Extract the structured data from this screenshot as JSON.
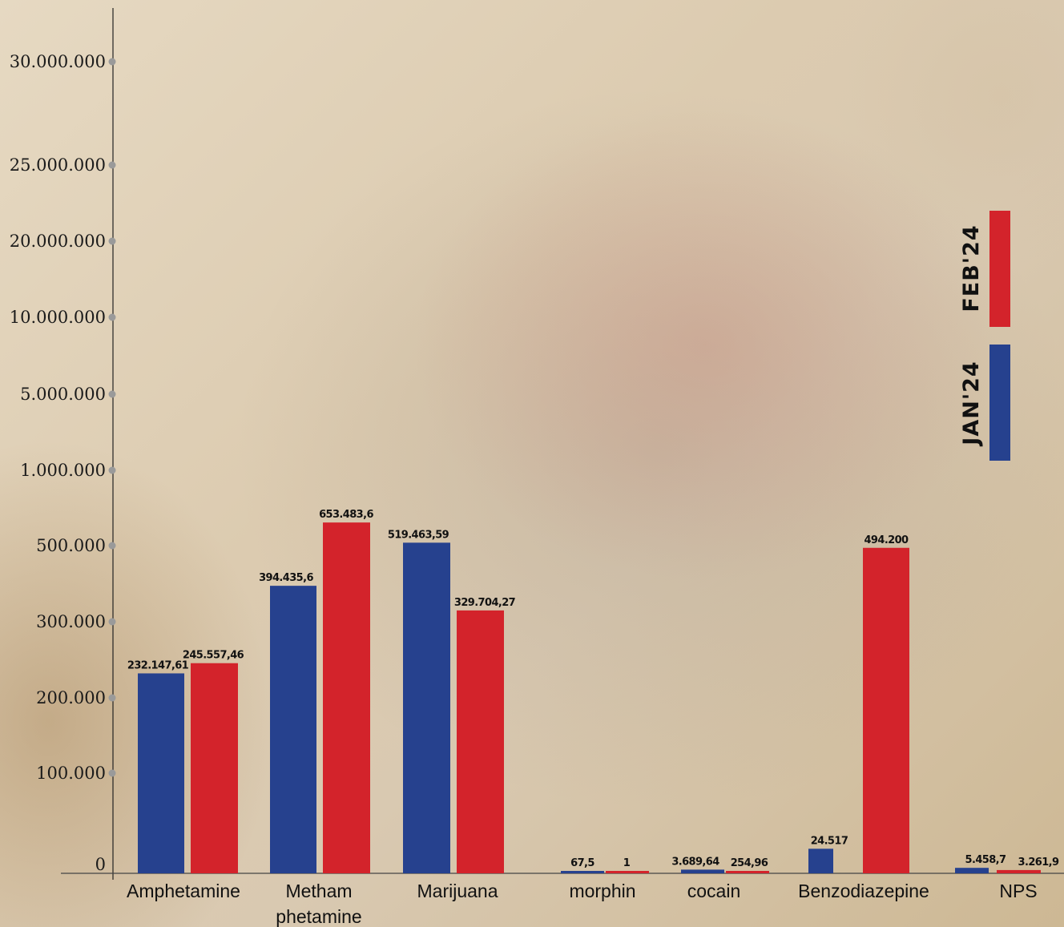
{
  "chart_data": {
    "type": "bar",
    "y_axis_ticks": [
      "30.000.000",
      "25.000.000",
      "20.000.000",
      "10.000.000",
      "5.000.000",
      "1.000.000",
      "500.000",
      "300.000",
      "200.000",
      "100.000",
      "0"
    ],
    "y_axis_tick_values": [
      30000000,
      25000000,
      20000000,
      10000000,
      5000000,
      1000000,
      500000,
      300000,
      200000,
      100000,
      0
    ],
    "categories": [
      [
        "Amphetamine"
      ],
      [
        "Metham",
        "phetamine"
      ],
      [
        "Marijuana"
      ],
      [
        "morphin"
      ],
      [
        "cocain"
      ],
      [
        "Benzodiazepine"
      ],
      [
        "NPS"
      ]
    ],
    "series": [
      {
        "name": "JAN'24",
        "color": "#26418e",
        "values": [
          232147.61,
          394435.6,
          519463.59,
          67.5,
          3689.64,
          24517,
          5458.7
        ],
        "labels": [
          "232.147,61",
          "394.435,6",
          "519.463,59",
          "67,5",
          "3.689,64",
          "24.517",
          "5.458,7"
        ]
      },
      {
        "name": "FEB'24",
        "color": "#d3232b",
        "values": [
          245557.46,
          653483.6,
          329704.27,
          1,
          254.96,
          494200,
          3261.9
        ],
        "labels": [
          "245.557,46",
          "653.483,6",
          "329.704,27",
          "1",
          "254,96",
          "494.200",
          "3.261,9"
        ]
      }
    ],
    "legend": [
      {
        "label": "FEB'24",
        "color": "#d3232b"
      },
      {
        "label": "JAN'24",
        "color": "#26418e"
      }
    ],
    "legend_placement": "right",
    "y_scale": "non-linear (ticks unevenly spaced)",
    "grid": false
  }
}
